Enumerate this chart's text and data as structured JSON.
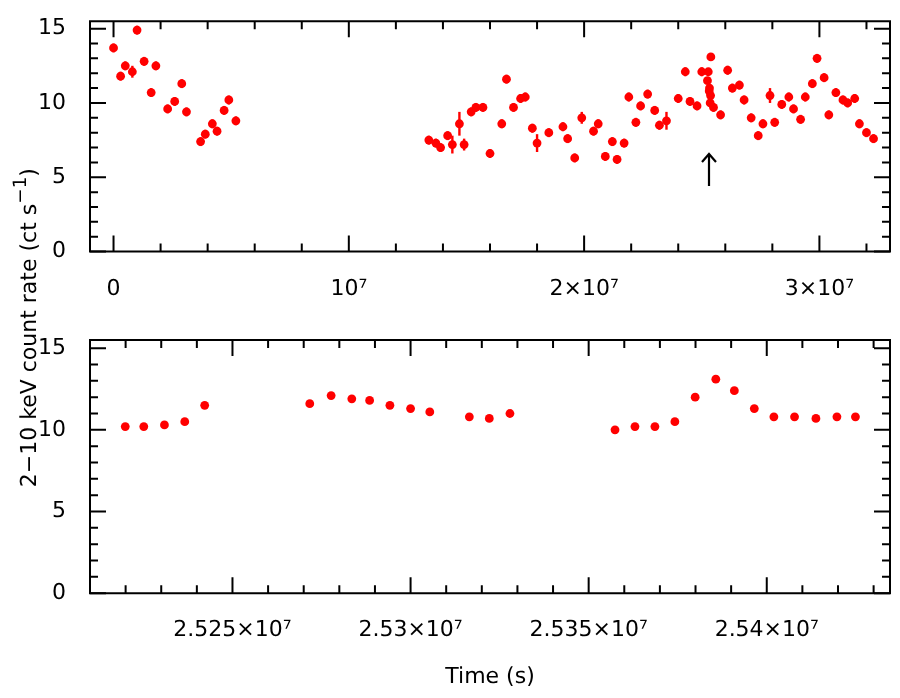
{
  "chart_data": [
    {
      "type": "scatter",
      "ylabel": "2−10 keV count rate (ct s$^{−1}$)",
      "marker": "circle",
      "xlim": [
        -1000000,
        33000000
      ],
      "ylim": [
        0,
        15.5
      ],
      "xticks": [
        {
          "value": 0,
          "label": "0"
        },
        {
          "value": 2000000,
          "label": null
        },
        {
          "value": 4000000,
          "label": null
        },
        {
          "value": 6000000,
          "label": null
        },
        {
          "value": 8000000,
          "label": null
        },
        {
          "value": 10000000,
          "label": "10⁷"
        },
        {
          "value": 12000000,
          "label": null
        },
        {
          "value": 14000000,
          "label": null
        },
        {
          "value": 16000000,
          "label": null
        },
        {
          "value": 18000000,
          "label": null
        },
        {
          "value": 20000000,
          "label": "2×10⁷"
        },
        {
          "value": 22000000,
          "label": null
        },
        {
          "value": 24000000,
          "label": null
        },
        {
          "value": 26000000,
          "label": null
        },
        {
          "value": 28000000,
          "label": null
        },
        {
          "value": 30000000,
          "label": "3×10⁷"
        },
        {
          "value": 32000000,
          "label": null
        }
      ],
      "yticks": [
        0,
        {
          "value": 1,
          "label": null
        },
        {
          "value": 2,
          "label": null
        },
        {
          "value": 3,
          "label": null
        },
        {
          "value": 4,
          "label": null
        },
        5,
        {
          "value": 6,
          "label": null
        },
        {
          "value": 7,
          "label": null
        },
        {
          "value": 8,
          "label": null
        },
        {
          "value": 9,
          "label": null
        },
        10,
        {
          "value": 11,
          "label": null
        },
        {
          "value": 12,
          "label": null
        },
        {
          "value": 13,
          "label": null
        },
        {
          "value": 14,
          "label": null
        },
        15
      ],
      "series": [
        {
          "color": "#ff0000",
          "x": [
            0,
            300000,
            500000,
            800000,
            1000000,
            1300000,
            1600000,
            1800000,
            2300000,
            2600000,
            2900000,
            3100000,
            3700000,
            3900000,
            4200000,
            4400000,
            4700000,
            4900000,
            5200000,
            13400000,
            13700000,
            13900000,
            14200000,
            14400000,
            14700000,
            14900000,
            15200000,
            15400000,
            15700000,
            16000000,
            16500000,
            16700000,
            17000000,
            17300000,
            17500000,
            17800000,
            18000000,
            18500000,
            19100000,
            19300000,
            19600000,
            19900000,
            20400000,
            20600000,
            20900000,
            21200000,
            21400000,
            21700000,
            21900000,
            22200000,
            22400000,
            22700000,
            23000000,
            23200000,
            23500000,
            24000000,
            24300000,
            24500000,
            24800000,
            25000000,
            25242200,
            25277700,
            25316500,
            25327900,
            25357400,
            25374200,
            25385700,
            25500000,
            25800000,
            26100000,
            26300000,
            26600000,
            26800000,
            27100000,
            27400000,
            27600000,
            27900000,
            28100000,
            28400000,
            28700000,
            28900000,
            29200000,
            29400000,
            29700000,
            29900000,
            30200000,
            30400000,
            30700000,
            31000000,
            31200000,
            31500000,
            31700000,
            32000000,
            32300000
          ],
          "values": [
            13.7,
            11.8,
            12.5,
            12.1,
            14.9,
            12.8,
            10.7,
            12.5,
            9.6,
            10.1,
            11.3,
            9.4,
            7.4,
            7.9,
            8.6,
            8.1,
            9.5,
            10.2,
            8.8,
            7.5,
            7.3,
            7.0,
            7.8,
            7.2,
            8.6,
            7.2,
            9.4,
            9.7,
            9.7,
            6.6,
            8.6,
            11.6,
            9.7,
            10.3,
            10.4,
            8.3,
            7.3,
            8.0,
            8.4,
            7.6,
            6.3,
            9.0,
            8.1,
            8.6,
            6.4,
            7.4,
            6.2,
            7.3,
            10.4,
            8.7,
            9.8,
            10.6,
            9.5,
            8.5,
            8.8,
            10.3,
            12.1,
            10.1,
            9.8,
            12.1,
            11.5,
            12.1,
            10.8,
            11.0,
            10.0,
            10.5,
            13.1,
            9.7,
            9.2,
            12.2,
            11.0,
            11.2,
            10.2,
            9.0,
            7.8,
            8.6,
            10.5,
            8.7,
            9.9,
            10.4,
            9.6,
            8.9,
            10.4,
            11.3,
            13.0,
            11.7,
            9.2,
            10.7,
            10.2,
            10.0,
            10.3,
            8.6,
            8.0,
            7.6
          ],
          "errors": [
            0.3,
            0.3,
            0.3,
            0.4,
            0.3,
            0.3,
            0.3,
            0.3,
            0.3,
            0.3,
            0.3,
            0.3,
            0.3,
            0.3,
            0.3,
            0.3,
            0.3,
            0.3,
            0.3,
            0.3,
            0.3,
            0.3,
            0.3,
            0.6,
            0.8,
            0.4,
            0.3,
            0.3,
            0.3,
            0.3,
            0.3,
            0.3,
            0.3,
            0.3,
            0.3,
            0.3,
            0.6,
            0.3,
            0.3,
            0.3,
            0.3,
            0.4,
            0.3,
            0.3,
            0.3,
            0.3,
            0.3,
            0.3,
            0.3,
            0.3,
            0.3,
            0.3,
            0.3,
            0.3,
            0.6,
            0.3,
            0.3,
            0.3,
            0.3,
            0.3,
            null,
            null,
            null,
            null,
            null,
            null,
            null,
            0.3,
            0.3,
            0.3,
            0.3,
            0.3,
            0.3,
            0.3,
            0.3,
            0.3,
            0.5,
            0.3,
            0.3,
            0.3,
            0.3,
            0.3,
            0.3,
            0.3,
            0.3,
            0.3,
            0.3,
            0.3,
            0.3,
            0.3,
            0.3,
            0.3,
            0.3,
            0.3
          ]
        }
      ]
    },
    {
      "type": "scatter",
      "xlabel": "Time (s)",
      "marker": "circle",
      "xlim": [
        25210000,
        25434600
      ],
      "ylim": [
        0,
        15.5
      ],
      "xticks": [
        {
          "value": 25220000,
          "label": null
        },
        {
          "value": 25230000,
          "label": null
        },
        {
          "value": 25240000,
          "label": null
        },
        {
          "value": 25250000,
          "label": "2.525×10⁷"
        },
        {
          "value": 25260000,
          "label": null
        },
        {
          "value": 25270000,
          "label": null
        },
        {
          "value": 25280000,
          "label": null
        },
        {
          "value": 25290000,
          "label": null
        },
        {
          "value": 25300000,
          "label": "2.53×10⁷"
        },
        {
          "value": 25310000,
          "label": null
        },
        {
          "value": 25320000,
          "label": null
        },
        {
          "value": 25330000,
          "label": null
        },
        {
          "value": 25340000,
          "label": null
        },
        {
          "value": 25350000,
          "label": "2.535×10⁷"
        },
        {
          "value": 25360000,
          "label": null
        },
        {
          "value": 25370000,
          "label": null
        },
        {
          "value": 25380000,
          "label": null
        },
        {
          "value": 25390000,
          "label": null
        },
        {
          "value": 25400000,
          "label": "2.54×10⁷"
        },
        {
          "value": 25410000,
          "label": null
        },
        {
          "value": 25420000,
          "label": null
        },
        {
          "value": 25430000,
          "label": null
        }
      ],
      "yticks": [
        0,
        {
          "value": 1,
          "label": null
        },
        {
          "value": 2,
          "label": null
        },
        {
          "value": 3,
          "label": null
        },
        {
          "value": 4,
          "label": null
        },
        5,
        {
          "value": 6,
          "label": null
        },
        {
          "value": 7,
          "label": null
        },
        {
          "value": 8,
          "label": null
        },
        {
          "value": 9,
          "label": null
        },
        10,
        {
          "value": 11,
          "label": null
        },
        {
          "value": 12,
          "label": null
        },
        {
          "value": 13,
          "label": null
        },
        {
          "value": 14,
          "label": null
        },
        15
      ],
      "series": [
        {
          "color": "#ff0000",
          "x": [
            25219900,
            25225100,
            25230900,
            25236600,
            25242200,
            25271700,
            25277700,
            25283500,
            25288500,
            25294200,
            25300000,
            25305400,
            25316500,
            25322100,
            25327900,
            25357400,
            25363000,
            25368600,
            25374200,
            25379900,
            25385700,
            25390900,
            25396500,
            25402000,
            25407800,
            25413800,
            25419700,
            25424900
          ],
          "values": [
            10.2,
            10.2,
            10.3,
            10.5,
            11.5,
            11.6,
            12.1,
            11.9,
            11.8,
            11.5,
            11.3,
            11.1,
            10.8,
            10.7,
            11.0,
            10.0,
            10.2,
            10.2,
            10.5,
            12.0,
            13.1,
            12.4,
            11.3,
            10.8,
            10.8,
            10.7,
            10.8,
            10.8
          ]
        }
      ]
    }
  ]
}
